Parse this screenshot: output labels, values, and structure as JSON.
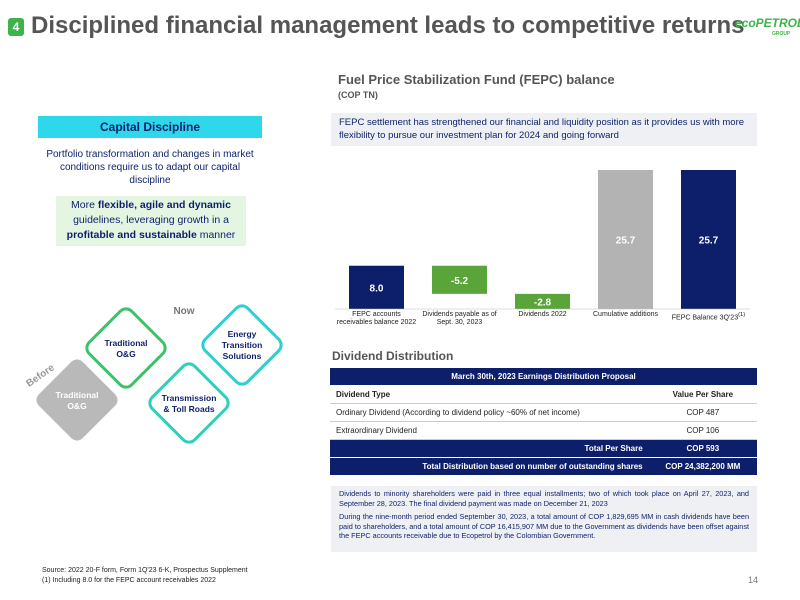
{
  "header": {
    "number": "4",
    "title": "Disciplined financial management leads to competitive returns",
    "logo": "ecoPETROL",
    "logo_sub": "GROUP"
  },
  "left": {
    "capital": "Capital Discipline",
    "intro": "Portfolio transformation and changes in market conditions require us to adapt our capital discipline",
    "green_box": [
      "More ",
      "flexible, agile and dynamic",
      " guidelines, leveraging growth in a ",
      "profitable and sustainable",
      " manner"
    ],
    "now": "Now",
    "before": "Before",
    "nodes": [
      "Traditional O&G",
      "Traditional O&G",
      "Energy Transition Solutions",
      "Transmission & Toll Roads"
    ]
  },
  "chart_data": {
    "type": "waterfall",
    "title": "Fuel Price Stabilization Fund (FEPC) balance",
    "subtitle": "(COP TN)",
    "annotation": "FEPC settlement has strengthened our financial and liquidity position as it provides us with more flexibility to pursue our investment plan for 2024 and going forward",
    "categories": [
      "FEPC accounts receivables balance 2022",
      "Dividends payable as of Sept. 30, 2023",
      "Dividends 2022",
      "Cumulative additions",
      "FEPC Balance 3Q'23"
    ],
    "footnote_marker": "(1)",
    "values": [
      8.0,
      -5.2,
      -2.8,
      25.7,
      25.7
    ],
    "value_labels": [
      "8.0",
      "-5.2",
      "-2.8",
      "25.7",
      "25.7"
    ],
    "colors": [
      "#0d1f6b",
      "#5aa53a",
      "#5aa53a",
      "#b3b3b3",
      "#0d1f6b"
    ],
    "totals": [
      false,
      false,
      false,
      false,
      true
    ]
  },
  "dividends": {
    "title": "Dividend Distribution",
    "table": {
      "title": "March 30th, 2023 Earnings Distribution Proposal",
      "header": [
        "Dividend Type",
        "Value Per Share"
      ],
      "rows": [
        [
          "Ordinary Dividend (According to dividend policy ~60% of net income)",
          "COP 487"
        ],
        [
          "Extraordinary Dividend",
          "COP 106"
        ]
      ],
      "totals": [
        [
          "Total Per Share",
          "COP 593"
        ],
        [
          "Total Distribution based on number of outstanding shares",
          "COP 24,382,200 MM"
        ]
      ]
    },
    "notes": [
      "Dividends to minority shareholders were paid in three equal installments; two of which took place on April 27, 2023, and September 28, 2023. The final dividend payment was made on December 21, 2023",
      "During the nine-month period ended September 30, 2023, a total amount of COP 1,829,695 MM in cash dividends have been paid to shareholders, and a total amount of COP 16,415,907 MM due to the Government as dividends have been offset against the FEPC accounts receivable due to Ecopetrol by the Colombian Government."
    ]
  },
  "footer": {
    "source": [
      "Source: 2022 20-F form, Form 1Q'23 6-K, Prospectus Supplement",
      "(1) Including 8.0 for the FEPC account receivables 2022"
    ],
    "page": "14"
  }
}
